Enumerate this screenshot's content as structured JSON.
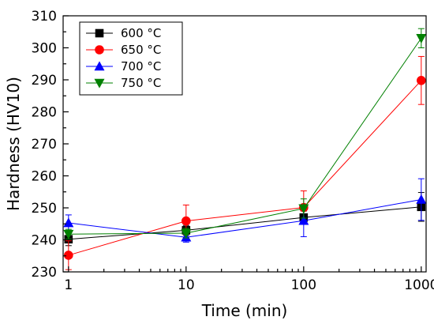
{
  "chart_data": {
    "type": "line",
    "xscale": "log",
    "x": [
      1,
      10,
      100,
      1000
    ],
    "x_tick_labels": [
      "1",
      "10",
      "100",
      "1000"
    ],
    "xlim": [
      0.9,
      1100
    ],
    "ylim": [
      230,
      310
    ],
    "y_ticks": [
      230,
      240,
      250,
      260,
      270,
      280,
      290,
      300,
      310
    ],
    "xlabel": "Time (min)",
    "ylabel": "Hardness (HV10)",
    "title": "",
    "grid": false,
    "legend_position": "top-left",
    "series": [
      {
        "name": "600 °C",
        "color": "#000000",
        "marker": "square",
        "values": [
          240.2,
          243.0,
          247.0,
          250.3
        ],
        "errors": [
          2.0,
          1.5,
          2.0,
          4.5
        ]
      },
      {
        "name": "650 °C",
        "color": "#ff0000",
        "marker": "circle",
        "values": [
          235.2,
          245.9,
          250.1,
          289.8
        ],
        "errors": [
          4.5,
          5.0,
          5.2,
          7.5
        ]
      },
      {
        "name": "700 °C",
        "color": "#0000ff",
        "marker": "triangle-up",
        "values": [
          245.3,
          240.8,
          246.0,
          252.6
        ],
        "errors": [
          2.5,
          1.5,
          5.0,
          6.5
        ]
      },
      {
        "name": "750 °C",
        "color": "#008000",
        "marker": "triangle-down",
        "values": [
          241.8,
          242.1,
          249.8,
          303.0
        ],
        "errors": [
          1.5,
          1.5,
          3.0,
          3.0
        ]
      }
    ]
  }
}
